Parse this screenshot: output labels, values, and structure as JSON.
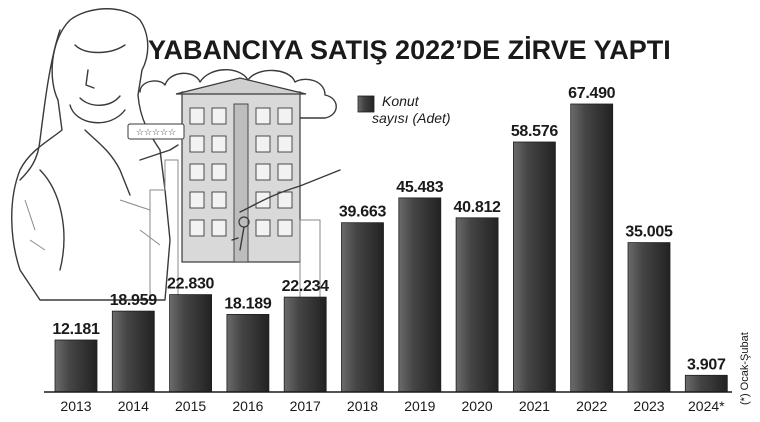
{
  "colors": {
    "bar": "#404040",
    "bar_dark": "#1f1f1f",
    "bar_light": "#6b6b6b",
    "text": "#1a1a1a"
  },
  "chart_data": {
    "type": "bar",
    "title": "YABANCIYA SATIŞ 2022’DE ZİRVE YAPTI",
    "legend": {
      "label_line1": "Konut",
      "label_line2": "sayısı (Adet)",
      "position": "top-center"
    },
    "categories": [
      "2013",
      "2014",
      "2015",
      "2016",
      "2017",
      "2018",
      "2019",
      "2020",
      "2021",
      "2022",
      "2023",
      "2024*"
    ],
    "values": [
      12181,
      18959,
      22830,
      18189,
      22234,
      39663,
      45483,
      40812,
      58576,
      67490,
      35005,
      3907
    ],
    "value_labels": [
      "12.181",
      "18.959",
      "22.830",
      "18.189",
      "22.234",
      "39.663",
      "45.483",
      "40.812",
      "58.576",
      "67.490",
      "35.005",
      "3.907"
    ],
    "ylim": [
      0,
      67490
    ],
    "grid": false,
    "footnote": "(*) Ocak-Şubat"
  }
}
